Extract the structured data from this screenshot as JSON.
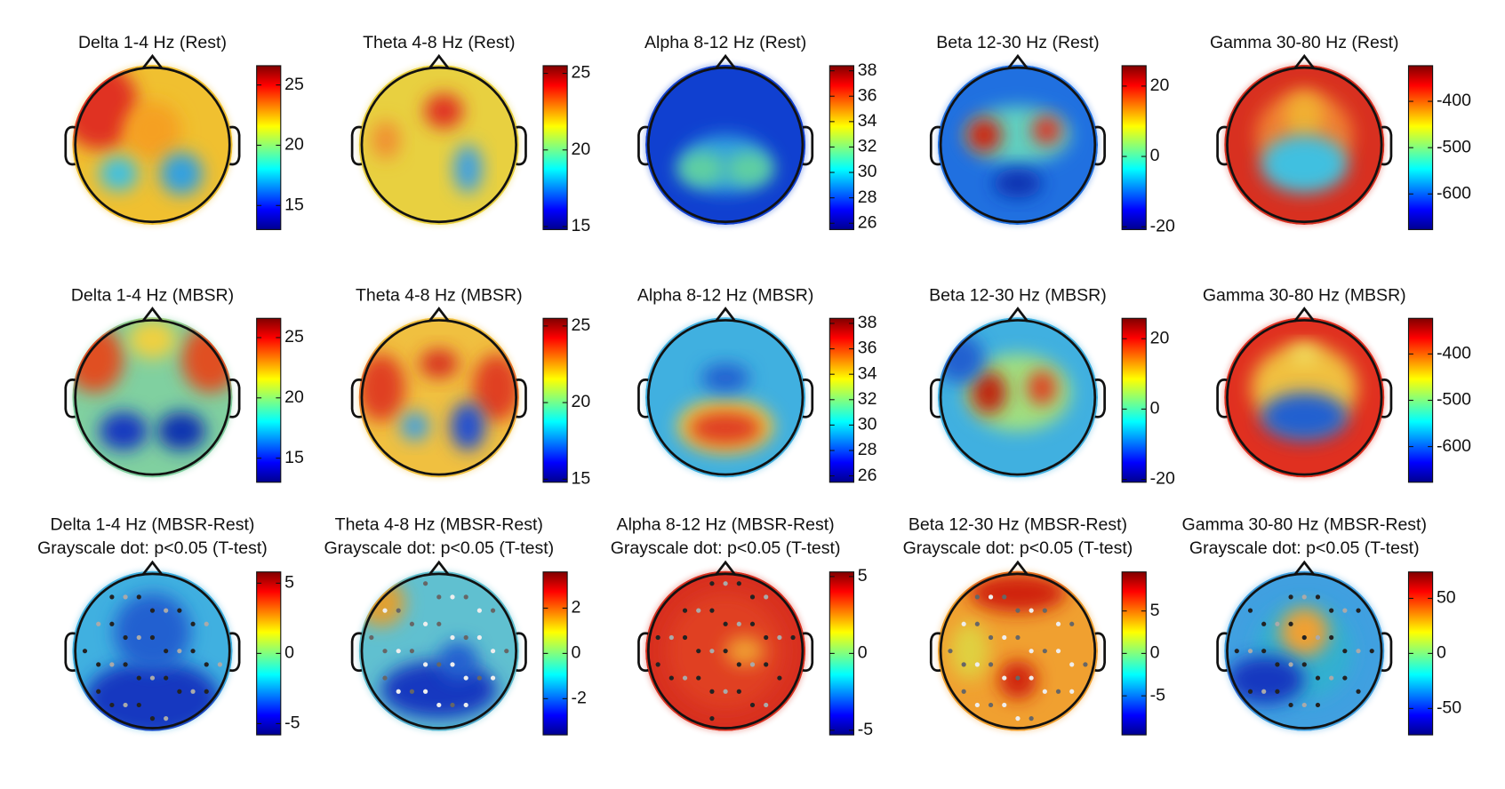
{
  "chart_data": [
    {
      "type": "topomap",
      "title": "Delta 1-4 Hz (Rest)",
      "ylim": [
        13,
        26.6
      ],
      "yticks": [
        15,
        20,
        25
      ]
    },
    {
      "type": "topomap",
      "title": "Theta 4-8 Hz (Rest)",
      "ylim": [
        14.8,
        25.5
      ],
      "yticks": [
        15,
        20,
        25
      ]
    },
    {
      "type": "topomap",
      "title": "Alpha 8-12 Hz (Rest)",
      "ylim": [
        25.5,
        38.4
      ],
      "yticks": [
        26,
        28,
        30,
        32,
        34,
        36,
        38
      ]
    },
    {
      "type": "topomap",
      "title": "Beta 12-30 Hz (Rest)",
      "ylim": [
        -20.8,
        25.8
      ],
      "yticks": [
        -20,
        0,
        20
      ]
    },
    {
      "type": "topomap",
      "title": "Gamma 30-80 Hz (Rest)",
      "ylim": [
        -677,
        -323
      ],
      "yticks": [
        -600,
        -500,
        -400
      ]
    },
    {
      "type": "topomap",
      "title": "Delta 1-4 Hz (MBSR)",
      "ylim": [
        13,
        26.6
      ],
      "yticks": [
        15,
        20,
        25
      ]
    },
    {
      "type": "topomap",
      "title": "Theta 4-8 Hz (MBSR)",
      "ylim": [
        14.8,
        25.5
      ],
      "yticks": [
        15,
        20,
        25
      ]
    },
    {
      "type": "topomap",
      "title": "Alpha 8-12 Hz (MBSR)",
      "ylim": [
        25.5,
        38.4
      ],
      "yticks": [
        26,
        28,
        30,
        32,
        34,
        36,
        38
      ]
    },
    {
      "type": "topomap",
      "title": "Beta 12-30 Hz (MBSR)",
      "ylim": [
        -20.8,
        25.8
      ],
      "yticks": [
        -20,
        0,
        20
      ]
    },
    {
      "type": "topomap",
      "title": "Gamma 30-80 Hz (MBSR)",
      "ylim": [
        -677,
        -323
      ],
      "yticks": [
        -600,
        -500,
        -400
      ]
    },
    {
      "type": "topomap",
      "title": "Delta 1-4 Hz (MBSR-Rest)",
      "subtitle": "Grayscale dot: p<0.05 (T-test)",
      "ylim": [
        -5.8,
        5.8
      ],
      "yticks": [
        -5,
        0,
        5
      ]
    },
    {
      "type": "topomap",
      "title": "Theta 4-8 Hz (MBSR-Rest)",
      "subtitle": "Grayscale dot: p<0.05 (T-test)",
      "ylim": [
        -3.6,
        3.6
      ],
      "yticks": [
        -2,
        0,
        2
      ]
    },
    {
      "type": "topomap",
      "title": "Alpha 8-12 Hz (MBSR-Rest)",
      "subtitle": "Grayscale dot: p<0.05 (T-test)",
      "ylim": [
        -5.3,
        5.3
      ],
      "yticks": [
        -5,
        0,
        5
      ]
    },
    {
      "type": "topomap",
      "title": "Beta 12-30 Hz (MBSR-Rest)",
      "subtitle": "Grayscale dot: p<0.05 (T-test)",
      "ylim": [
        -9.6,
        9.6
      ],
      "yticks": [
        -5,
        0,
        5
      ]
    },
    {
      "type": "topomap",
      "title": "Gamma 30-80 Hz (MBSR-Rest)",
      "subtitle": "Grayscale dot: p<0.05 (T-test)",
      "ylim": [
        -74,
        74
      ],
      "yticks": [
        -50,
        0,
        50
      ]
    }
  ]
}
